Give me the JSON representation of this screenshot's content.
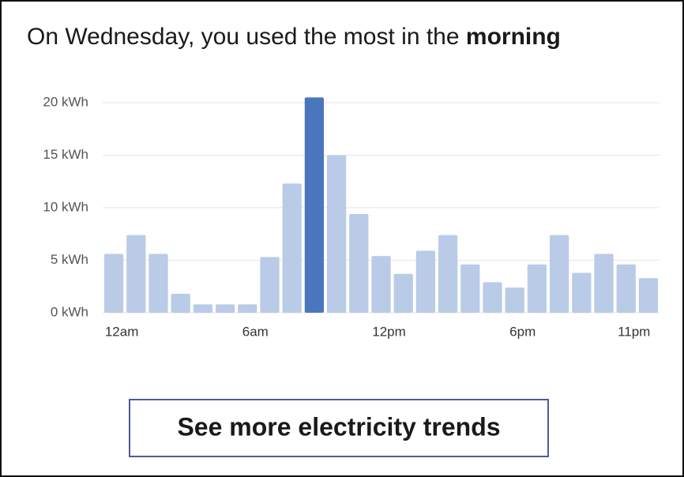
{
  "header": {
    "title_prefix": "On Wednesday, you used the most in the ",
    "title_emphasis": "morning"
  },
  "chart_data": {
    "type": "bar",
    "categories": [
      "12am",
      null,
      null,
      null,
      null,
      null,
      "6am",
      null,
      null,
      null,
      null,
      null,
      "12pm",
      null,
      null,
      null,
      null,
      null,
      "6pm",
      null,
      null,
      null,
      null,
      "11pm",
      null
    ],
    "values": [
      5.6,
      7.4,
      5.6,
      1.8,
      0.8,
      0.8,
      0.8,
      5.3,
      12.3,
      20.5,
      15,
      9.4,
      5.4,
      3.7,
      5.9,
      7.4,
      4.6,
      2.9,
      2.4,
      4.6,
      7.4,
      3.8,
      5.6,
      4.6,
      3.3
    ],
    "colors": [
      "#b9cbe6",
      "#b9cbe6",
      "#b9cbe6",
      "#b9cbe6",
      "#b9cbe6",
      "#b9cbe6",
      "#b9cbe6",
      "#b9cbe6",
      "#b9cbe6",
      "#4a76bd",
      "#b9cbe6",
      "#b9cbe6",
      "#b9cbe6",
      "#b9cbe6",
      "#b9cbe6",
      "#b9cbe6",
      "#b9cbe6",
      "#b9cbe6",
      "#b9cbe6",
      "#b9cbe6",
      "#b9cbe6",
      "#b9cbe6",
      "#b9cbe6",
      "#b9cbe6",
      "#b9cbe6"
    ],
    "ylim": [
      0,
      20
    ],
    "yticks": [
      {
        "value": 0,
        "label": "0 kWh"
      },
      {
        "value": 5,
        "label": "5 kWh"
      },
      {
        "value": 10,
        "label": "10 kWh"
      },
      {
        "value": 15,
        "label": "15 kWh"
      },
      {
        "value": 20,
        "label": "20 kWh"
      }
    ],
    "grid": true
  },
  "button": {
    "label": "See more electricity trends"
  }
}
